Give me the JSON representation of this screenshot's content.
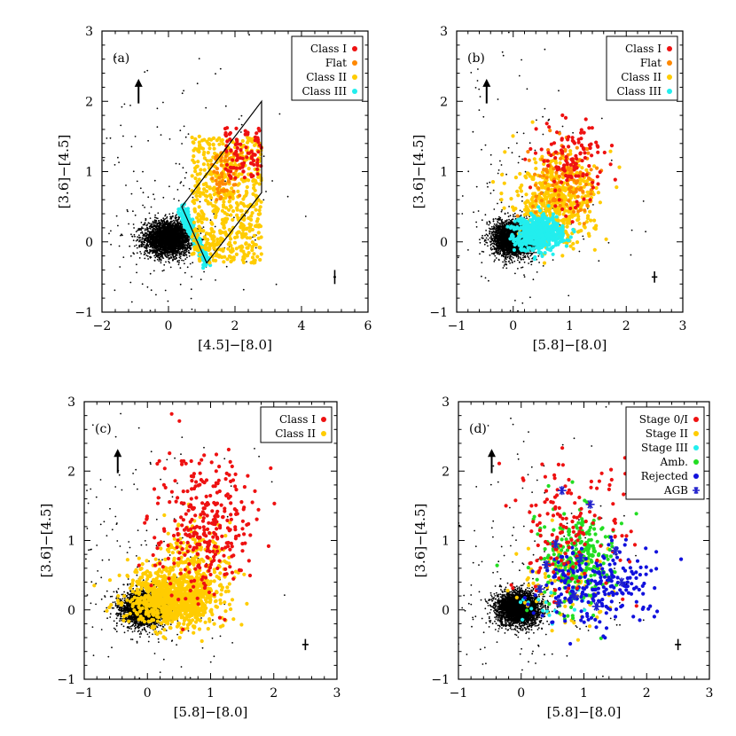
{
  "colors": {
    "class_I": "#ee1111",
    "flat": "#ff8800",
    "class_II": "#ffcc00",
    "class_III": "#22eeee",
    "ambiguous": "#22dd22",
    "rejected": "#1111dd",
    "agb": "#2222cc",
    "background": "#000000"
  },
  "chart_data": [
    {
      "type": "scatter",
      "panel_label": "(a)",
      "xlabel": "[4.5]−[8.0]",
      "ylabel": "[3.6]−[4.5]",
      "xlim": [
        -2,
        6
      ],
      "ylim": [
        -1,
        3
      ],
      "xticks": [
        -2,
        0,
        2,
        4,
        6
      ],
      "yticks": [
        -1,
        0,
        1,
        2,
        3
      ],
      "xtick_labels": [
        "−2",
        "0",
        "2",
        "4",
        "6"
      ],
      "ytick_labels": [
        "−1",
        "0",
        "1",
        "2",
        "3"
      ],
      "legend_position": "top-right",
      "legend": [
        {
          "label": "Class I",
          "color_key": "class_I",
          "marker": "dot"
        },
        {
          "label": "Flat",
          "color_key": "flat",
          "marker": "dot"
        },
        {
          "label": "Class II",
          "color_key": "class_II",
          "marker": "dot"
        },
        {
          "label": "Class III",
          "color_key": "class_III",
          "marker": "dot"
        }
      ],
      "selection_polygon": [
        [
          0.4,
          0.5
        ],
        [
          2.8,
          2.0
        ],
        [
          2.8,
          0.7
        ],
        [
          1.15,
          -0.3
        ]
      ],
      "reddening_arrow": {
        "x": -0.9,
        "y0": 1.97,
        "y1": 2.32
      },
      "error_bar": {
        "x": 5.0,
        "y": -0.5,
        "xerr": 0.04,
        "yerr": 0.1
      },
      "series": [
        {
          "name": "background",
          "color_key": "background",
          "n": 3400,
          "center": [
            0.0,
            0.05
          ],
          "spread": [
            0.35,
            0.12
          ],
          "outliers": 220,
          "outlier_range": [
            [
              -1.8,
              5.8
            ],
            [
              -0.9,
              2.9
            ]
          ]
        },
        {
          "name": "Class III",
          "color_key": "class_III",
          "region": "strip",
          "x_range": [
            0.4,
            1.15
          ],
          "y_range": [
            -0.3,
            0.5
          ],
          "n": 260
        },
        {
          "name": "Class II",
          "color_key": "class_II",
          "region": "band",
          "x_range": [
            0.7,
            2.8
          ],
          "y_range": [
            -0.3,
            1.5
          ],
          "n": 620
        },
        {
          "name": "Flat",
          "color_key": "flat",
          "region": "band",
          "x_range": [
            1.3,
            2.2
          ],
          "y_range": [
            0.6,
            1.3
          ],
          "n": 60
        },
        {
          "name": "Class I",
          "color_key": "class_I",
          "region": "band",
          "x_range": [
            1.7,
            2.8
          ],
          "y_range": [
            0.9,
            1.65
          ],
          "n": 90
        }
      ]
    },
    {
      "type": "scatter",
      "panel_label": "(b)",
      "xlabel": "[5.8]−[8.0]",
      "ylabel": "[3.6]−[4.5]",
      "xlim": [
        -1,
        3
      ],
      "ylim": [
        -1,
        3
      ],
      "xticks": [
        -1,
        0,
        1,
        2,
        3
      ],
      "yticks": [
        -1,
        0,
        1,
        2,
        3
      ],
      "xtick_labels": [
        "−1",
        "0",
        "1",
        "2",
        "3"
      ],
      "ytick_labels": [
        "−1",
        "0",
        "1",
        "2",
        "3"
      ],
      "legend_position": "top-right",
      "legend": [
        {
          "label": "Class I",
          "color_key": "class_I",
          "marker": "dot"
        },
        {
          "label": "Flat",
          "color_key": "flat",
          "marker": "dot"
        },
        {
          "label": "Class II",
          "color_key": "class_II",
          "marker": "dot"
        },
        {
          "label": "Class III",
          "color_key": "class_III",
          "marker": "dot"
        }
      ],
      "reddening_arrow": {
        "x": -0.47,
        "y0": 1.97,
        "y1": 2.32
      },
      "error_bar": {
        "x": 2.5,
        "y": -0.5,
        "xerr": 0.05,
        "yerr": 0.08
      },
      "series": [
        {
          "name": "background",
          "color_key": "background",
          "n": 3400,
          "center": [
            0.0,
            0.05
          ],
          "spread": [
            0.17,
            0.12
          ],
          "outliers": 200,
          "outlier_range": [
            [
              -0.9,
              2.9
            ],
            [
              -0.9,
              2.9
            ]
          ]
        },
        {
          "name": "Class II",
          "color_key": "class_II",
          "center": [
            0.75,
            0.55
          ],
          "spread": [
            0.35,
            0.3
          ],
          "n": 520
        },
        {
          "name": "Flat",
          "color_key": "flat",
          "center": [
            0.95,
            0.85
          ],
          "spread": [
            0.3,
            0.25
          ],
          "n": 130
        },
        {
          "name": "Class III",
          "color_key": "class_III",
          "center": [
            0.45,
            0.12
          ],
          "spread": [
            0.22,
            0.12
          ],
          "n": 520
        },
        {
          "name": "Class I",
          "color_key": "class_I",
          "center": [
            1.05,
            1.15
          ],
          "spread": [
            0.3,
            0.28
          ],
          "n": 120
        }
      ]
    },
    {
      "type": "scatter",
      "panel_label": "(c)",
      "xlabel": "[5.8]−[8.0]",
      "ylabel": "[3.6]−[4.5]",
      "xlim": [
        -1,
        3
      ],
      "ylim": [
        -1,
        3
      ],
      "xticks": [
        -1,
        0,
        1,
        2,
        3
      ],
      "yticks": [
        -1,
        0,
        1,
        2,
        3
      ],
      "xtick_labels": [
        "−1",
        "0",
        "1",
        "2",
        "3"
      ],
      "ytick_labels": [
        "−1",
        "0",
        "1",
        "2",
        "3"
      ],
      "legend_position": "top-right",
      "legend": [
        {
          "label": "Class I",
          "color_key": "class_I",
          "marker": "dot"
        },
        {
          "label": "Class II",
          "color_key": "class_II",
          "marker": "dot"
        }
      ],
      "reddening_arrow": {
        "x": -0.47,
        "y0": 1.97,
        "y1": 2.32
      },
      "error_bar": {
        "x": 2.5,
        "y": -0.5,
        "xerr": 0.05,
        "yerr": 0.08
      },
      "series": [
        {
          "name": "background",
          "color_key": "background",
          "n": 3400,
          "center": [
            -0.05,
            0.02
          ],
          "spread": [
            0.17,
            0.12
          ],
          "outliers": 200,
          "outlier_range": [
            [
              -0.9,
              2.9
            ],
            [
              -0.9,
              2.9
            ]
          ]
        },
        {
          "name": "Class II",
          "color_key": "class_II",
          "center": [
            0.4,
            0.15
          ],
          "spread": [
            0.35,
            0.2
          ],
          "n": 900
        },
        {
          "name": "Class II tail",
          "color_key": "class_II",
          "center": [
            0.75,
            0.6
          ],
          "spread": [
            0.3,
            0.3
          ],
          "n": 260
        },
        {
          "name": "Class I",
          "color_key": "class_I",
          "center": [
            0.9,
            1.2
          ],
          "spread": [
            0.4,
            0.5
          ],
          "n": 320
        }
      ]
    },
    {
      "type": "scatter",
      "panel_label": "(d)",
      "xlabel": "[5.8]−[8.0]",
      "ylabel": "[3.6]−[4.5]",
      "xlim": [
        -1,
        3
      ],
      "ylim": [
        -1,
        3
      ],
      "xticks": [
        -1,
        0,
        1,
        2,
        3
      ],
      "yticks": [
        -1,
        0,
        1,
        2,
        3
      ],
      "xtick_labels": [
        "−1",
        "0",
        "1",
        "2",
        "3"
      ],
      "ytick_labels": [
        "−1",
        "0",
        "1",
        "2",
        "3"
      ],
      "legend_position": "top-right",
      "legend": [
        {
          "label": "Stage 0/I",
          "color_key": "class_I",
          "marker": "dot"
        },
        {
          "label": "Stage II",
          "color_key": "class_II",
          "marker": "dot"
        },
        {
          "label": "Stage III",
          "color_key": "class_III",
          "marker": "dot"
        },
        {
          "label": "Amb.",
          "color_key": "ambiguous",
          "marker": "dot"
        },
        {
          "label": "Rejected",
          "color_key": "rejected",
          "marker": "dot"
        },
        {
          "label": "AGB",
          "color_key": "agb",
          "marker": "asterisk"
        }
      ],
      "reddening_arrow": {
        "x": -0.47,
        "y0": 1.97,
        "y1": 2.32
      },
      "error_bar": {
        "x": 2.5,
        "y": -0.5,
        "xerr": 0.05,
        "yerr": 0.08
      },
      "series": [
        {
          "name": "background",
          "color_key": "background",
          "n": 3400,
          "center": [
            -0.05,
            0.02
          ],
          "spread": [
            0.17,
            0.12
          ],
          "outliers": 200,
          "outlier_range": [
            [
              -0.9,
              2.9
            ],
            [
              -0.9,
              2.9
            ]
          ]
        },
        {
          "name": "Stage II",
          "color_key": "class_II",
          "center": [
            0.7,
            0.4
          ],
          "spread": [
            0.35,
            0.35
          ],
          "n": 90
        },
        {
          "name": "Stage III",
          "color_key": "class_III",
          "center": [
            0.6,
            0.1
          ],
          "spread": [
            0.3,
            0.15
          ],
          "n": 25
        },
        {
          "name": "Amb.",
          "color_key": "ambiguous",
          "center": [
            0.85,
            0.75
          ],
          "spread": [
            0.3,
            0.35
          ],
          "n": 260
        },
        {
          "name": "Rejected",
          "color_key": "rejected",
          "center": [
            1.2,
            0.3
          ],
          "spread": [
            0.45,
            0.3
          ],
          "n": 240
        },
        {
          "name": "Stage 0/I",
          "color_key": "class_I",
          "center": [
            0.7,
            1.1
          ],
          "spread": [
            0.45,
            0.55
          ],
          "n": 160
        }
      ],
      "agb_points": [
        [
          0.65,
          1.72
        ],
        [
          1.1,
          1.52
        ],
        [
          0.55,
          0.95
        ],
        [
          0.95,
          0.75
        ],
        [
          0.4,
          0.65
        ],
        [
          1.5,
          0.85
        ],
        [
          1.6,
          0.4
        ],
        [
          0.85,
          0.2
        ],
        [
          0.6,
          0.1
        ],
        [
          1.2,
          0.05
        ],
        [
          0.3,
          0.3
        ]
      ]
    }
  ]
}
